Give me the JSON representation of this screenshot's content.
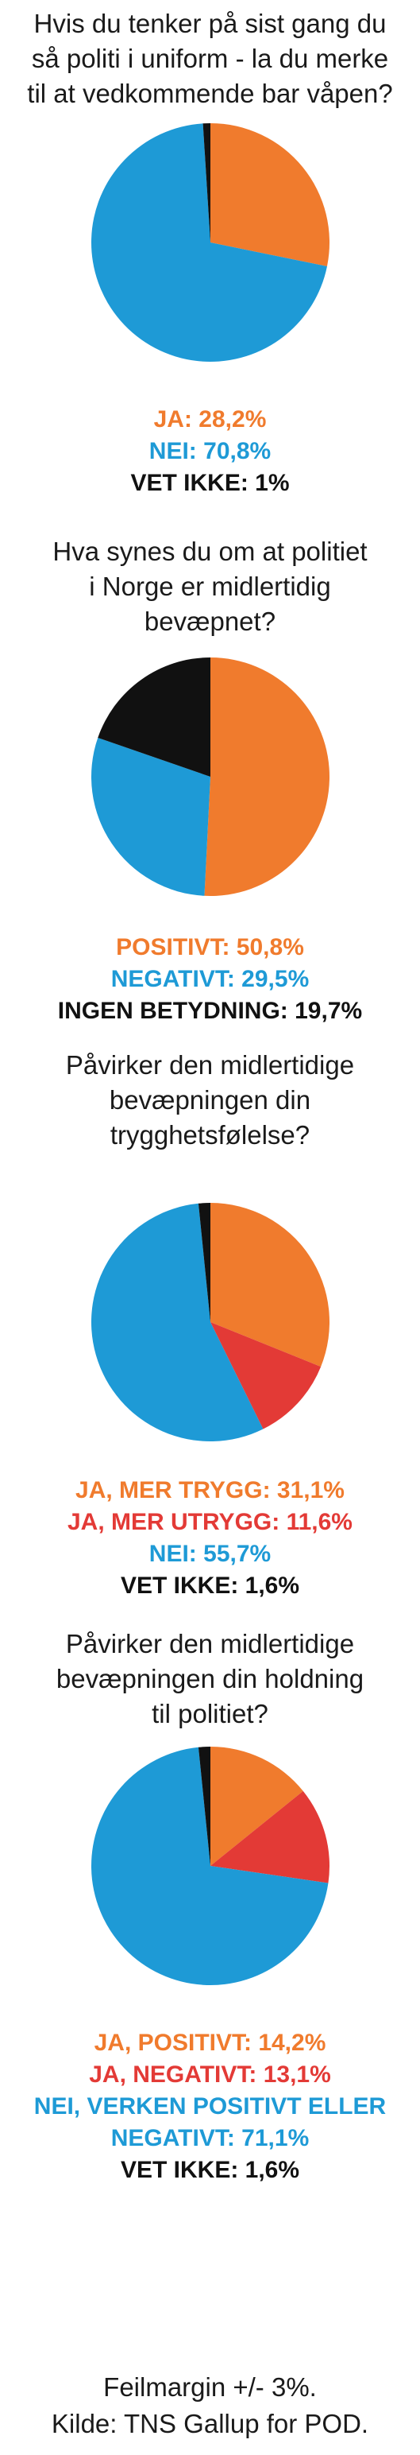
{
  "colors": {
    "orange": "#f07b2d",
    "blue": "#1e9ad6",
    "black": "#111111",
    "red": "#e33a36"
  },
  "chart_data": [
    {
      "type": "pie",
      "title": "Hvis du tenker på sist gang du så politi i uniform - la du merke til at vedkommende bar våpen?",
      "slices": [
        {
          "label": "JA",
          "value": 28.2,
          "color": "#f07b2d",
          "text": "JA:  28,2%"
        },
        {
          "label": "NEI",
          "value": 70.8,
          "color": "#1e9ad6",
          "text": "NEI: 70,8%"
        },
        {
          "label": "VET IKKE",
          "value": 1.0,
          "color": "#111111",
          "text": "VET IKKE: 1%"
        }
      ]
    },
    {
      "type": "pie",
      "title": "Hva synes du om at politiet i Norge er midlertidig bevæpnet?",
      "slices": [
        {
          "label": "POSITIVT",
          "value": 50.8,
          "color": "#f07b2d",
          "text": "POSITIVT:  50,8%"
        },
        {
          "label": "NEGATIVT",
          "value": 29.5,
          "color": "#1e9ad6",
          "text": "NEGATIVT:  29,5%"
        },
        {
          "label": "INGEN BETYDNING",
          "value": 19.7,
          "color": "#111111",
          "text": "INGEN BETYDNING: 19,7%"
        }
      ]
    },
    {
      "type": "pie",
      "title": "Påvirker den midlertidige bevæpningen din trygghetsfølelse?",
      "slices": [
        {
          "label": "JA, MER TRYGG",
          "value": 31.1,
          "color": "#f07b2d",
          "text": "JA, MER TRYGG:  31,1%"
        },
        {
          "label": "JA, MER UTRYGG",
          "value": 11.6,
          "color": "#e33a36",
          "text": "JA, MER UTRYGG: 11,6%"
        },
        {
          "label": "NEI",
          "value": 55.7,
          "color": "#1e9ad6",
          "text": "NEI:  55,7%"
        },
        {
          "label": "VET IKKE",
          "value": 1.6,
          "color": "#111111",
          "text": "VET IKKE:  1,6%"
        }
      ]
    },
    {
      "type": "pie",
      "title": "Påvirker den midlertidige bevæpningen din holdning til politiet?",
      "slices": [
        {
          "label": "JA, POSITIVT",
          "value": 14.2,
          "color": "#f07b2d",
          "text": "JA, POSITIVT: 14,2%"
        },
        {
          "label": "JA, NEGATIVT",
          "value": 13.1,
          "color": "#e33a36",
          "text": "JA, NEGATIVT: 13,1%"
        },
        {
          "label": "NEI, VERKEN POSITIVT ELLER NEGATIVT",
          "value": 71.1,
          "color": "#1e9ad6",
          "text": "NEI, VERKEN POSITIVT ELLER\nNEGATIVT:  71,1%"
        },
        {
          "label": "VET IKKE",
          "value": 1.6,
          "color": "#111111",
          "text": "VET IKKE:  1,6%"
        }
      ]
    }
  ],
  "questions": [
    "Hvis du tenker på sist gang du\nså politi i uniform - la du merke\ntil at vedkommende bar våpen?",
    "Hva synes du om at politiet\ni Norge er midlertidig\nbevæpnet?",
    "Påvirker den midlertidige\nbevæpningen din\ntrygghetsfølelse?",
    "Påvirker den midlertidige\nbevæpningen din holdning\ntil politiet?"
  ],
  "footer": {
    "margin": "Feilmargin +/- 3%.",
    "source": "Kilde: TNS Gallup for POD."
  }
}
